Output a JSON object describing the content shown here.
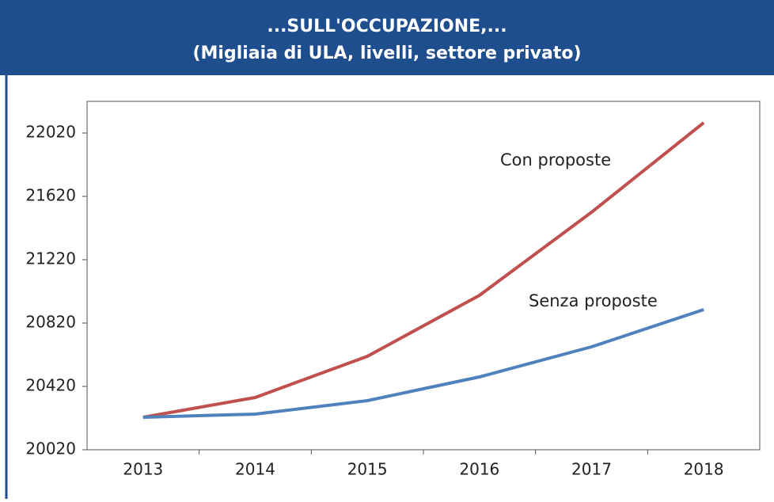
{
  "chart_data": {
    "type": "line",
    "title": "...SULL'OCCUPAZIONE,...",
    "subtitle": "(Migliaia di ULA, livelli, settore privato)",
    "categories": [
      "2013",
      "2014",
      "2015",
      "2016",
      "2017",
      "2018"
    ],
    "series": [
      {
        "name": "Con proposte",
        "color": "#c0504d",
        "values": [
          20225,
          20350,
          20610,
          20995,
          21520,
          22085
        ]
      },
      {
        "name": "Senza proposte",
        "color": "#4f81bd",
        "values": [
          20225,
          20245,
          20330,
          20480,
          20670,
          20905
        ]
      }
    ],
    "ylim": [
      20020,
      22220
    ],
    "yticks": [
      20020,
      20420,
      20820,
      21220,
      21620,
      22020
    ],
    "grid": false
  }
}
